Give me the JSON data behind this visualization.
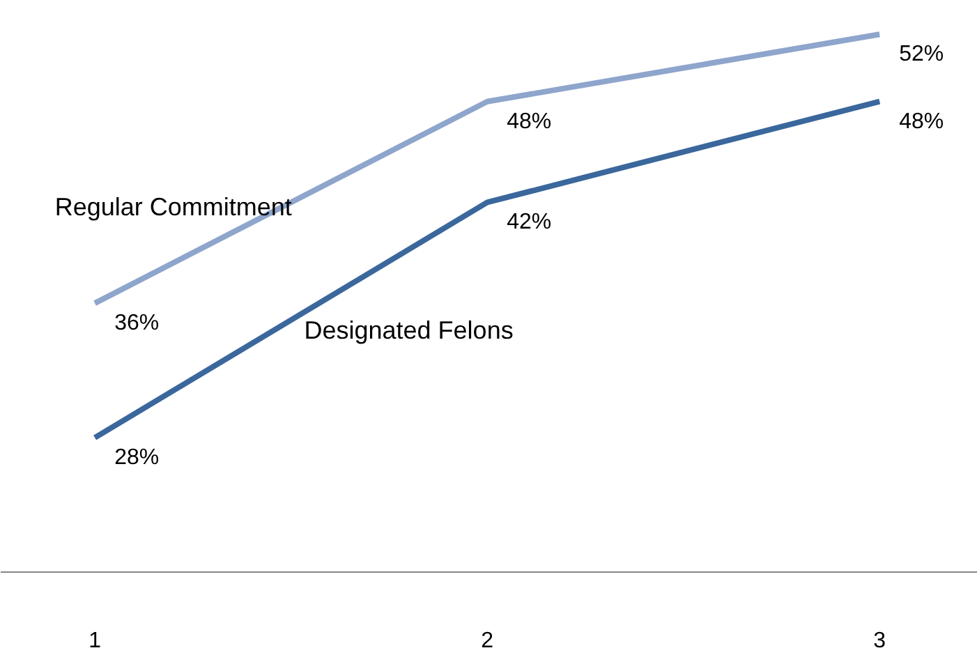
{
  "chart_data": {
    "type": "line",
    "categories": [
      "1",
      "2",
      "3"
    ],
    "series": [
      {
        "name": "Regular Commitment",
        "color": "#8ea5cc",
        "values": [
          36,
          48,
          52
        ],
        "value_labels": [
          "36%",
          "48%",
          "52%"
        ]
      },
      {
        "name": "Designated Felons",
        "color": "#3a679c",
        "values": [
          28,
          42,
          48
        ],
        "value_labels": [
          "28%",
          "42%",
          "48%"
        ]
      }
    ],
    "tick_labels": "x",
    "grid": false,
    "legend": false,
    "marker": "none",
    "line_style": "solid"
  }
}
